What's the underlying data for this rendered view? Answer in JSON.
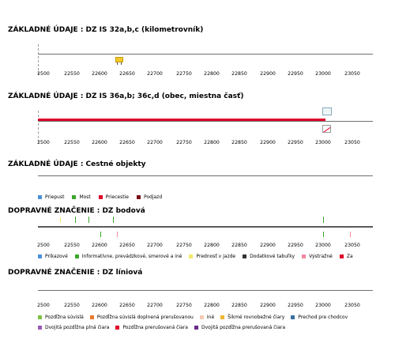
{
  "sections": {
    "km": "ZÁKLADNÉ ÚDAJE : DZ IS 32a,b,c (kilometrovník)",
    "obec": "ZÁKLADNÉ ÚDAJE : DZ IS 36a,b; 36c,d (obec, miestna časť)",
    "cestne": "ZÁKLADNÉ ÚDAJE : Cestné objekty",
    "bodova": "DOPRAVNÉ ZNAČENIE : DZ bodová",
    "liniova": "DOPRAVNÉ ZNAČENIE : DZ líniová"
  },
  "axis_ticks": [
    "2500",
    "22550",
    "22600",
    "22650",
    "22700",
    "22750",
    "22800",
    "22850",
    "22900",
    "22950",
    "23000",
    "23050"
  ],
  "legend_cestne": [
    {
      "label": "Priepust",
      "color": "#4a90d9"
    },
    {
      "label": "Most",
      "color": "#3aa62a"
    },
    {
      "label": "Priecestie",
      "color": "#e0002b"
    },
    {
      "label": "Podjazd",
      "color": "#7a0a14"
    }
  ],
  "legend_bodova": [
    {
      "label": "Príkazové",
      "color": "#4a90d9"
    },
    {
      "label": "Informatívne, prevádzkové, smerové a iné",
      "color": "#3aa62a"
    },
    {
      "label": "Prednosť v jazde",
      "color": "#f5e96a"
    },
    {
      "label": "Dodatkové tabuľky",
      "color": "#333333"
    },
    {
      "label": "Výstražné",
      "color": "#f0879e"
    },
    {
      "label": "Za",
      "color": "#e0002b"
    }
  ],
  "legend_liniova_row1": [
    {
      "label": "Pozdĺžna súvislá",
      "color": "#7cc242"
    },
    {
      "label": "Pozdĺžna súvislá doplnená prerušovanou",
      "color": "#e8772e"
    },
    {
      "label": "Iné",
      "color": "#f4cbb4"
    },
    {
      "label": "Šikmé rovnobežné čiary",
      "color": "#f2b632"
    },
    {
      "label": "Prechod pre chodcov",
      "color": "#3a6fa0"
    }
  ],
  "legend_liniova_row2": [
    {
      "label": "Dvojitá pozdĺžna plná čiara",
      "color": "#9b59b6"
    },
    {
      "label": "Pozdĺžna prerušovaná čiara",
      "color": "#e0002b"
    },
    {
      "label": "Dvojitá pozdĺžna prerušovaná čiara",
      "color": "#6a2b8a"
    }
  ]
}
